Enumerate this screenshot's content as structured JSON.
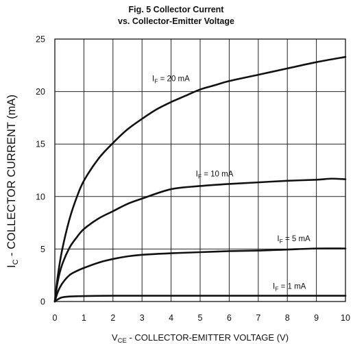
{
  "chart_data": {
    "type": "line",
    "title_line1": "Fig. 5  Collector Current",
    "title_line2": "vs. Collector-Emitter Voltage",
    "xlabel_main": "V",
    "xlabel_sub": "CE",
    "xlabel_rest": " - COLLECTOR-EMITTER VOLTAGE (V)",
    "ylabel_main": "I",
    "ylabel_sub": "C",
    "ylabel_rest": " -  COLLECTOR CURRENT (mA)",
    "xlim": [
      0,
      10
    ],
    "ylim": [
      0,
      25
    ],
    "xticks": [
      0,
      1,
      2,
      3,
      4,
      5,
      6,
      7,
      8,
      9,
      10
    ],
    "yticks": [
      0,
      5,
      10,
      15,
      20,
      25
    ],
    "grid": true,
    "series": [
      {
        "name": "IF = 20 mA",
        "label_main": "I",
        "label_sub": "F",
        "label_rest": " = 20 mA",
        "x": [
          0,
          0.1,
          0.25,
          0.5,
          0.75,
          1,
          1.5,
          2,
          2.5,
          3,
          3.5,
          4,
          4.5,
          5,
          5.5,
          6,
          7,
          8,
          9,
          10
        ],
        "y": [
          0,
          2.4,
          4.9,
          7.8,
          9.9,
          11.5,
          13.6,
          15.1,
          16.4,
          17.4,
          18.3,
          19.0,
          19.6,
          20.2,
          20.6,
          21.0,
          21.6,
          22.2,
          22.8,
          23.3
        ]
      },
      {
        "name": "IF = 10 mA",
        "label_main": "I",
        "label_sub": "F",
        "label_rest": " = 10 mA",
        "x": [
          0,
          0.1,
          0.25,
          0.5,
          0.75,
          1,
          1.5,
          2,
          2.5,
          3,
          4,
          5,
          6,
          7,
          8,
          9,
          9.5,
          10
        ],
        "y": [
          0,
          1.9,
          3.5,
          5.1,
          6.1,
          6.9,
          7.9,
          8.6,
          9.3,
          9.8,
          10.7,
          11.0,
          11.2,
          11.35,
          11.5,
          11.6,
          11.7,
          11.65
        ]
      },
      {
        "name": "IF = 5 mA",
        "label_main": "I",
        "label_sub": "F",
        "label_rest": " = 5 mA",
        "x": [
          0,
          0.1,
          0.25,
          0.5,
          0.75,
          1,
          1.5,
          2,
          2.5,
          3,
          4,
          5,
          6,
          7,
          8,
          9,
          10
        ],
        "y": [
          0,
          0.9,
          1.7,
          2.5,
          2.9,
          3.2,
          3.7,
          4.05,
          4.3,
          4.45,
          4.6,
          4.7,
          4.8,
          4.85,
          4.95,
          5.05,
          5.05
        ]
      },
      {
        "name": "IF = 1 mA",
        "label_main": "I",
        "label_sub": "F",
        "label_rest": " = 1 mA",
        "x": [
          0,
          0.1,
          0.2,
          0.3,
          0.5,
          0.75,
          1,
          2,
          4,
          6,
          8,
          10
        ],
        "y": [
          0,
          0.2,
          0.35,
          0.42,
          0.48,
          0.5,
          0.52,
          0.55,
          0.55,
          0.55,
          0.55,
          0.55
        ]
      }
    ]
  }
}
